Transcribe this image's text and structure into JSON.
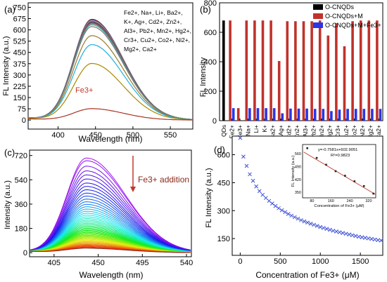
{
  "chart_data": [
    {
      "panel": "(a)",
      "type": "line",
      "xlabel": "Wavelength (nm)",
      "ylabel": "FL Intensity (a.u.)",
      "xlim": [
        360,
        580
      ],
      "ylim": [
        -60,
        780
      ],
      "xticks": [
        400,
        450,
        500,
        550
      ],
      "yticks": [
        0,
        75,
        150,
        225,
        300,
        375,
        450,
        525,
        600,
        675,
        750
      ],
      "legend_lines": [
        "Fe2+, Na+, Li+, Ba2+,",
        "K+, Ag+, Cd2+, Zn2+,",
        "Al3+, Pb2+, Mn2+, Hg2+,",
        "Cr3+, Cu2+, Co2+, Ni2+,",
        "Mg2+, Ca2+"
      ],
      "annotation": "Fe3+",
      "peak_wavelength": 445,
      "series": [
        {
          "color": "#000000",
          "peak": 668
        },
        {
          "color": "#c0392b",
          "peak": 665
        },
        {
          "color": "#2e3dd6",
          "peak": 662
        },
        {
          "color": "#4aa3a3",
          "peak": 660
        },
        {
          "color": "#e07bd4",
          "peak": 658
        },
        {
          "color": "#8bbb3a",
          "peak": 655
        },
        {
          "color": "#1a2a8c",
          "peak": 652
        },
        {
          "color": "#8b2252",
          "peak": 650
        },
        {
          "color": "#6a6a1a",
          "peak": 648
        },
        {
          "color": "#5555aa",
          "peak": 645
        },
        {
          "color": "#aa5533",
          "peak": 640
        },
        {
          "color": "#33aaaa",
          "peak": 632
        },
        {
          "color": "#777777",
          "peak": 620
        },
        {
          "color": "#9a7a2a",
          "peak": 560
        },
        {
          "color": "#1ab0e0",
          "peak": 500
        },
        {
          "color": "#aa8800",
          "peak": 375
        },
        {
          "color": "#aa3322",
          "peak": 75
        }
      ]
    },
    {
      "panel": "(b)",
      "type": "bar",
      "ylabel": "FL Intensity",
      "ylim": [
        0,
        800
      ],
      "yticks": [
        0,
        200,
        400,
        600,
        800
      ],
      "categories": [
        "QDs",
        "Fe2+",
        "Fe3+",
        "Na+",
        "Li+",
        "K+",
        "Ba2+",
        "Ag+",
        "Cd2+",
        "Zn2+",
        "Al3+",
        "Pb2+",
        "Mn2+",
        "Hg2+",
        "Cr3+",
        "Cu2+",
        "Co2+",
        "Ni2+",
        "Mg2+",
        "Ca2+"
      ],
      "series": [
        {
          "name": "O-CNQDs",
          "color": "#000000",
          "values": [
            680,
            null,
            null,
            null,
            null,
            null,
            null,
            null,
            null,
            null,
            null,
            null,
            null,
            null,
            null,
            null,
            null,
            null,
            null,
            null
          ]
        },
        {
          "name": "O-CNQDs+M",
          "color": "#c0322b",
          "values": [
            null,
            680,
            85,
            680,
            680,
            680,
            680,
            405,
            675,
            675,
            675,
            675,
            680,
            578,
            660,
            505,
            675,
            680,
            680,
            680
          ]
        },
        {
          "name": "O-CNQDs+M+Fe3+",
          "color": "#2b35e6",
          "values": [
            null,
            85,
            null,
            85,
            85,
            85,
            85,
            50,
            82,
            82,
            82,
            80,
            80,
            65,
            75,
            80,
            80,
            80,
            80,
            80
          ]
        }
      ]
    },
    {
      "panel": "(c)",
      "type": "line",
      "xlabel": "Wavelength (nm)",
      "ylabel": "Intensity (a.u.)",
      "xlim": [
        380,
        545
      ],
      "ylim": [
        -30,
        760
      ],
      "xticks": [
        405,
        450,
        495,
        540
      ],
      "yticks": [
        0,
        180,
        360,
        540,
        720
      ],
      "annotation": "Fe3+ addition",
      "peak_wavelength": 438,
      "series_peaks": [
        700,
        680,
        640,
        605,
        575,
        545,
        515,
        490,
        465,
        440,
        418,
        396,
        376,
        357,
        339,
        322,
        306,
        291,
        277,
        264,
        252,
        240,
        229,
        218,
        208,
        198,
        189,
        180,
        172,
        164,
        156,
        149,
        142,
        135,
        128,
        122,
        116,
        110,
        104,
        98,
        92,
        86,
        80,
        74,
        68,
        62,
        57,
        52,
        47,
        42,
        37,
        32
      ]
    },
    {
      "panel": "(d)",
      "type": "scatter",
      "xlabel": "Concentration of Fe3+ (μM)",
      "ylabel": "FL Intensity (a.u.)",
      "xlim": [
        -100,
        1780
      ],
      "ylim": [
        60,
        700
      ],
      "xticks": [
        0,
        500,
        1000,
        1500
      ],
      "yticks": [
        150,
        300,
        450,
        600
      ],
      "marker_color": "#3b4fd6",
      "x": [
        0,
        40,
        80,
        120,
        160,
        200,
        240,
        280,
        320,
        360,
        400,
        440,
        480,
        520,
        560,
        600,
        640,
        680,
        720,
        760,
        800,
        840,
        880,
        920,
        960,
        1000,
        1040,
        1080,
        1120,
        1160,
        1200,
        1240,
        1280,
        1320,
        1360,
        1400,
        1440,
        1480,
        1520,
        1560,
        1600,
        1640,
        1680,
        1720,
        1760
      ],
      "y": [
        690,
        590,
        540,
        495,
        460,
        430,
        405,
        385,
        368,
        352,
        338,
        325,
        313,
        302,
        292,
        282,
        273,
        265,
        257,
        249,
        242,
        236,
        230,
        224,
        218,
        212,
        207,
        202,
        197,
        192,
        188,
        184,
        180,
        176,
        172,
        168,
        164,
        160,
        157,
        154,
        151,
        148,
        145,
        142,
        140
      ],
      "inset": {
        "equation": "y=-0.7581x+602.9051",
        "r_squared": "R²=0.9823",
        "xlabel": "Concentration of Fe3+ (μM)",
        "ylabel": "FL Intensity (a.u.)",
        "xlim": [
          40,
          350
        ],
        "ylim": [
          320,
          610
        ],
        "xticks": [
          80,
          160,
          240,
          320
        ],
        "yticks": [
          350,
          420,
          490,
          560
        ],
        "x": [
          60,
          100,
          140,
          180,
          220,
          260,
          300,
          340
        ],
        "y": [
          590,
          537,
          500,
          465,
          440,
          410,
          384,
          343
        ]
      }
    }
  ]
}
